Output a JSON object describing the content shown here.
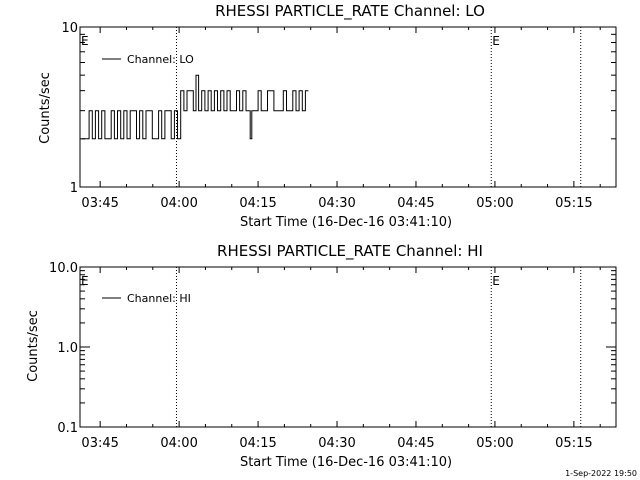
{
  "chart_data": [
    {
      "type": "line",
      "title": "RHESSI PARTICLE_RATE Channel: LO",
      "xlabel": "Start Time (16-Dec-16 03:41:10)",
      "ylabel": "Counts/sec",
      "yscale": "log",
      "ylim": [
        1,
        10
      ],
      "yticks": [
        {
          "value": 1,
          "label": "1"
        },
        {
          "value": 10,
          "label": "10"
        }
      ],
      "xlim": [
        "03:41:10",
        "05:23:00"
      ],
      "xticks": [
        "03:45",
        "04:00",
        "04:15",
        "04:30",
        "04:45",
        "05:00",
        "05:15"
      ],
      "xtick_minutes": [
        225,
        240,
        255,
        270,
        285,
        300,
        315
      ],
      "x_minutes_range": [
        221.17,
        323.0
      ],
      "dotted_lines_minutes": [
        239.5,
        299.3,
        316.3
      ],
      "e_flags": [
        "E",
        "E"
      ],
      "e_flag_minutes": [
        221.17,
        299.3
      ],
      "legend": {
        "label": "Channel: LO",
        "position": "top-left"
      },
      "series": [
        {
          "name": "Channel: LO",
          "x_minutes": [
            221.5,
            222.2,
            222.9,
            223.5,
            224.1,
            224.7,
            225.3,
            225.9,
            226.5,
            227.1,
            227.7,
            228.3,
            228.9,
            229.5,
            230.1,
            230.7,
            231.3,
            231.9,
            232.5,
            233.1,
            233.7,
            234.3,
            234.9,
            235.5,
            236.1,
            236.7,
            237.3,
            237.9,
            238.5,
            239.1,
            239.7,
            240.3,
            240.9,
            241.5,
            242.1,
            242.7,
            243.2,
            243.7,
            244.3,
            244.9,
            245.5,
            246.1,
            246.7,
            247.3,
            247.9,
            248.5,
            249.1,
            249.7,
            250.3,
            250.9,
            251.5,
            252.1,
            252.7,
            253.2,
            253.5,
            253.8,
            254.4,
            255.0,
            255.6,
            256.2,
            256.8,
            257.4,
            258.0,
            258.6,
            259.2,
            259.8,
            260.4,
            261.0,
            261.6,
            262.2,
            262.8,
            263.4,
            264.0
          ],
          "values": [
            2,
            2,
            3,
            2,
            3,
            2,
            3,
            2,
            2,
            3,
            2,
            3,
            2,
            3,
            2,
            3,
            3,
            2,
            3,
            2,
            3,
            3,
            2,
            2,
            3,
            2,
            3,
            3,
            2,
            3,
            2,
            4,
            3,
            4,
            4,
            3,
            5,
            3,
            4,
            3,
            4,
            3,
            4,
            3,
            4,
            3,
            4,
            3,
            3,
            4,
            3,
            4,
            3,
            3,
            2,
            3,
            3,
            4,
            3,
            3,
            4,
            4,
            3,
            3,
            3,
            4,
            3,
            3,
            4,
            3,
            4,
            3,
            4
          ]
        }
      ]
    },
    {
      "type": "line",
      "title": "RHESSI PARTICLE_RATE Channel: HI",
      "xlabel": "Start Time (16-Dec-16 03:41:10)",
      "ylabel": "Counts/sec",
      "yscale": "log",
      "ylim": [
        0.1,
        10
      ],
      "yticks": [
        {
          "value": 0.1,
          "label": "0.1"
        },
        {
          "value": 1,
          "label": "1.0"
        },
        {
          "value": 10,
          "label": "10.0"
        }
      ],
      "xlim": [
        "03:41:10",
        "05:23:00"
      ],
      "xticks": [
        "03:45",
        "04:00",
        "04:15",
        "04:30",
        "04:45",
        "05:00",
        "05:15"
      ],
      "xtick_minutes": [
        225,
        240,
        255,
        270,
        285,
        300,
        315
      ],
      "x_minutes_range": [
        221.17,
        323.0
      ],
      "dotted_lines_minutes": [
        239.5,
        299.3,
        316.3
      ],
      "e_flags": [
        "E",
        "E"
      ],
      "e_flag_minutes": [
        221.17,
        299.3
      ],
      "legend": {
        "label": "Channel: HI",
        "position": "top-left"
      },
      "series": [
        {
          "name": "Channel: HI",
          "x_minutes": [],
          "values": []
        }
      ]
    }
  ],
  "footer": {
    "timestamp": "1-Sep-2022 19:50"
  }
}
